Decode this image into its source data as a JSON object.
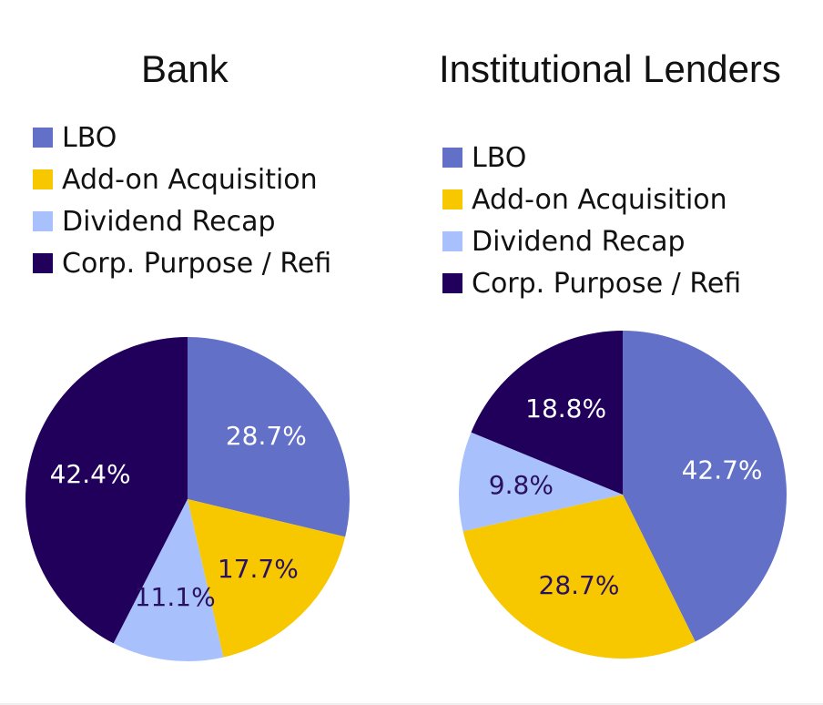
{
  "chart_data": [
    {
      "type": "pie",
      "title": "Bank",
      "categories": [
        "LBO",
        "Add-on Acquisition",
        "Dividend Recap",
        "Corp. Purpose / Refi"
      ],
      "values": [
        28.7,
        17.7,
        11.1,
        42.4
      ],
      "labels": [
        "28.7%",
        "17.7%",
        "11.1%",
        "42.4%"
      ],
      "colors": [
        "#6270c8",
        "#f7c800",
        "#a8c0fc",
        "#21005b"
      ],
      "label_colors": [
        "#ffffff",
        "#2a1060",
        "#2a1060",
        "#ffffff"
      ],
      "legend_position": "top"
    },
    {
      "type": "pie",
      "title": "Institutional Lenders",
      "categories": [
        "LBO",
        "Add-on Acquisition",
        "Dividend Recap",
        "Corp. Purpose / Refi"
      ],
      "values": [
        42.7,
        28.7,
        9.8,
        18.8
      ],
      "labels": [
        "42.7%",
        "28.7%",
        "9.8%",
        "18.8%"
      ],
      "colors": [
        "#6270c8",
        "#f7c800",
        "#a8c0fc",
        "#21005b"
      ],
      "label_colors": [
        "#ffffff",
        "#2a1060",
        "#2a1060",
        "#ffffff"
      ],
      "legend_position": "top"
    }
  ]
}
